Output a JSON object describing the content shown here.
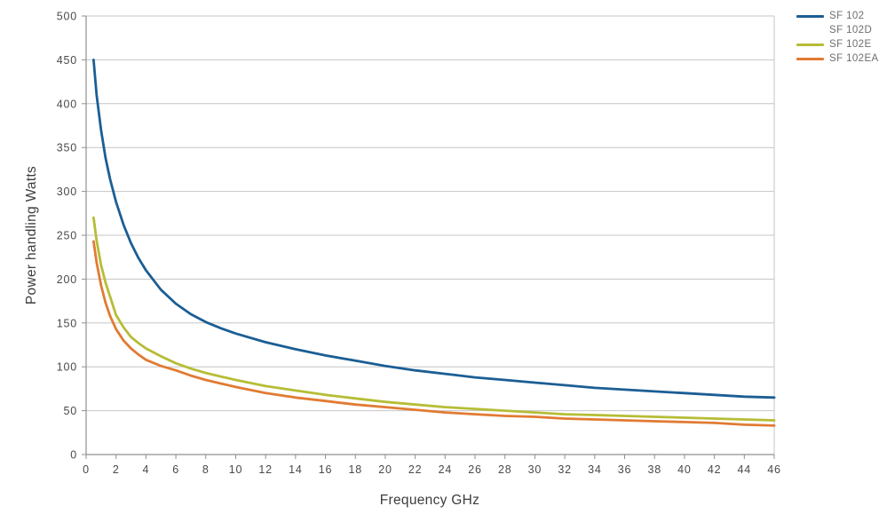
{
  "chart_data": {
    "type": "line",
    "title": "",
    "xlabel": "Frequency GHz",
    "ylabel": "Power handling Watts",
    "xlim": [
      0,
      46
    ],
    "ylim": [
      0,
      500
    ],
    "x_ticks": [
      0,
      2,
      4,
      6,
      8,
      10,
      12,
      14,
      16,
      18,
      20,
      22,
      24,
      26,
      28,
      30,
      32,
      34,
      36,
      38,
      40,
      42,
      44,
      46
    ],
    "y_ticks": [
      0,
      50,
      100,
      150,
      200,
      250,
      300,
      350,
      400,
      450,
      500
    ],
    "grid": "horizontal",
    "legend_position": "top-right",
    "series": [
      {
        "name": "SF 102",
        "color": "#1b5e94",
        "x": [
          0.5,
          0.7,
          1,
          1.3,
          1.6,
          2,
          2.5,
          3,
          3.5,
          4,
          5,
          6,
          7,
          8,
          9,
          10,
          12,
          14,
          16,
          18,
          20,
          22,
          24,
          26,
          28,
          30,
          32,
          34,
          36,
          38,
          40,
          42,
          44,
          46
        ],
        "values": [
          450,
          410,
          370,
          338,
          314,
          288,
          262,
          241,
          224,
          210,
          188,
          172,
          160,
          151,
          144,
          138,
          128,
          120,
          113,
          107,
          101,
          96,
          92,
          88,
          85,
          82,
          79,
          76,
          74,
          72,
          70,
          68,
          66,
          65
        ]
      },
      {
        "name": "SF 102D",
        "color": "#ffffff",
        "x": [],
        "values": []
      },
      {
        "name": "SF 102E",
        "color": "#b6bd35",
        "x": [
          0.5,
          0.7,
          1,
          1.3,
          1.6,
          2,
          2.5,
          3,
          3.5,
          4,
          5,
          6,
          7,
          8,
          9,
          10,
          12,
          14,
          16,
          18,
          20,
          22,
          24,
          26,
          28,
          30,
          32,
          34,
          36,
          38,
          40,
          42,
          44,
          46
        ],
        "values": [
          270,
          244,
          216,
          196,
          180,
          159,
          145,
          134,
          127,
          121,
          112,
          104,
          98,
          93,
          89,
          85,
          78,
          73,
          68,
          64,
          60,
          57,
          54,
          52,
          50,
          48,
          46,
          45,
          44,
          43,
          42,
          41,
          40,
          39
        ]
      },
      {
        "name": "SF 102EA",
        "color": "#e17b33",
        "x": [
          0.5,
          0.7,
          1,
          1.3,
          1.6,
          2,
          2.5,
          3,
          3.5,
          4,
          5,
          6,
          7,
          8,
          9,
          10,
          12,
          14,
          16,
          18,
          20,
          22,
          24,
          26,
          28,
          30,
          32,
          34,
          36,
          38,
          40,
          42,
          44,
          46
        ],
        "values": [
          243,
          219,
          193,
          173,
          158,
          143,
          130,
          121,
          114,
          108,
          101,
          96,
          90,
          85,
          81,
          77,
          70,
          65,
          61,
          57,
          54,
          51,
          48,
          46,
          44,
          43,
          41,
          40,
          39,
          38,
          37,
          36,
          34,
          33
        ]
      }
    ]
  },
  "colors": {
    "gridline": "#c6c6c6",
    "axis": "#8f8f8f",
    "tick_label": "#4a4a4a",
    "axis_title": "#3c3c3c",
    "legend_text": "#6e6e6e",
    "background": "#ffffff"
  }
}
